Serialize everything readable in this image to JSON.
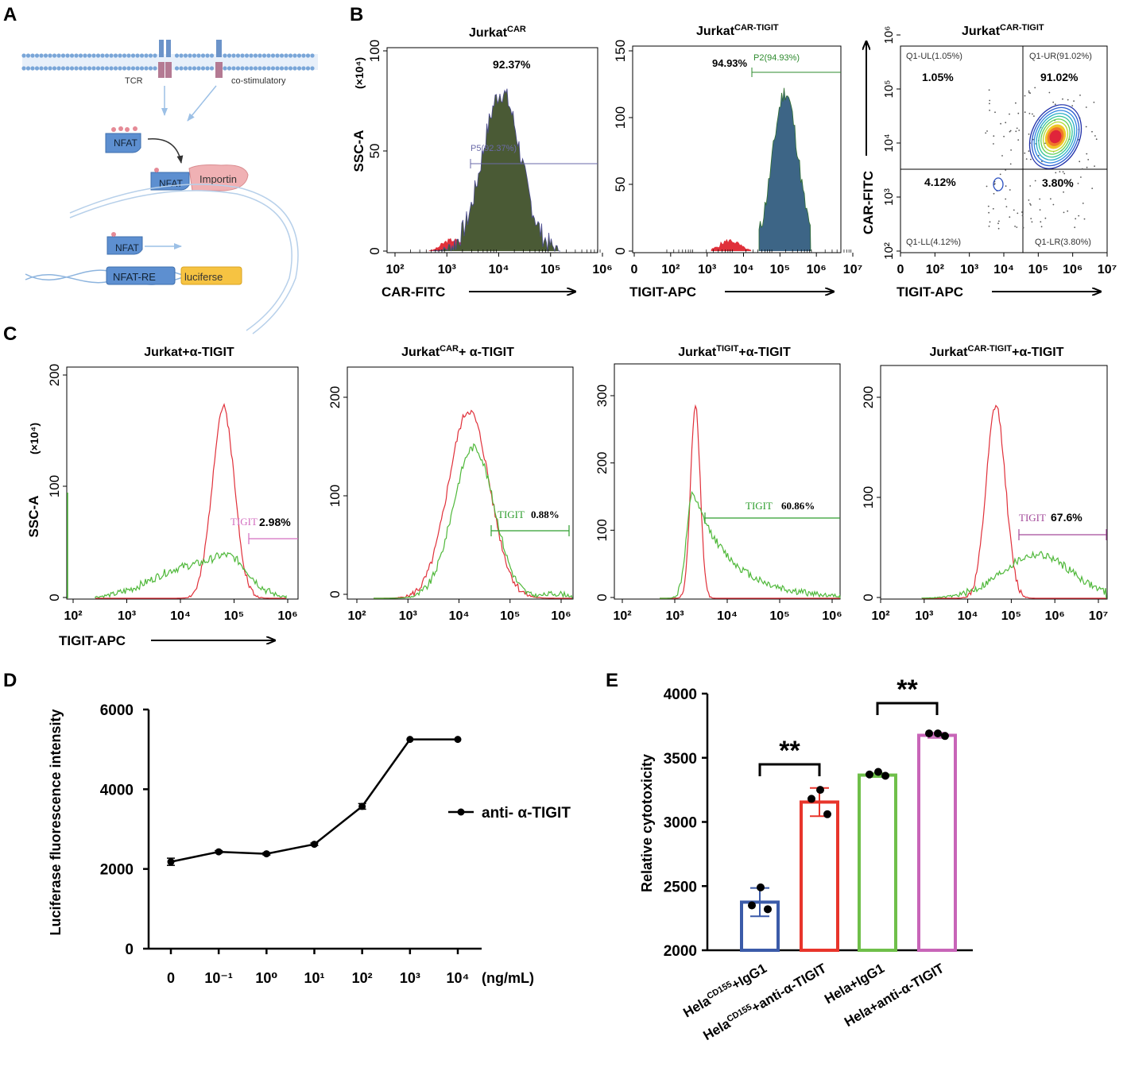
{
  "panel_labels": [
    "A",
    "B",
    "C",
    "D",
    "E"
  ],
  "panel_a": {
    "tcr": "TCR",
    "costim": "co-stimulatory",
    "nfat": "NFAT",
    "importin": "Importin",
    "nfat_re": "NFAT-RE",
    "luciferase": "luciferse"
  },
  "panel_b": {
    "h1": {
      "title_base": "Jurkat",
      "title_sup": "CAR",
      "pct": "92.37%",
      "gate": "P5(92.37%)",
      "ylabel": "SSC-A",
      "yunit": "(×10⁴)",
      "yticks": [
        "0",
        "50",
        "100"
      ],
      "xlabel": "CAR-FITC",
      "xticks": [
        "10²",
        "10³",
        "10⁴",
        "10⁵",
        "10⁶"
      ]
    },
    "h2": {
      "title_base": "Jurkat",
      "title_sup": "CAR-TIGIT",
      "pct": "94.93%",
      "gate": "P2(94.93%)",
      "yticks": [
        "0",
        "50",
        "100",
        "150"
      ],
      "xlabel": "TIGIT-APC",
      "xticks": [
        "0",
        "10²",
        "10³",
        "10⁴",
        "10⁵",
        "10⁶",
        "10⁷"
      ]
    },
    "h3": {
      "title_base": "Jurkat",
      "title_sup": "CAR-TIGIT",
      "ylabel": "CAR-FITC",
      "xlabel": "TIGIT-APC",
      "yticks": [
        "10²",
        "10³",
        "10⁴",
        "10⁵",
        "10⁶"
      ],
      "xticks": [
        "0",
        "10²",
        "10³",
        "10⁴",
        "10⁵",
        "10⁶",
        "10⁷"
      ],
      "q_ul": "Q1-UL(1.05%)",
      "q_ur": "Q1-UR(91.02%)",
      "q_ll": "Q1-LL(4.12%)",
      "q_lr": "Q1-LR(3.80%)",
      "ul": "1.05%",
      "ur": "91.02%",
      "ll": "4.12%",
      "lr": "3.80%"
    }
  },
  "panel_c": {
    "ylabel": "SSC-A",
    "yunit": "(×10⁴)",
    "xlabel": "TIGIT-APC",
    "gate_name": "TIGIT",
    "h1": {
      "title": "Jurkat+α-TIGIT",
      "pct": "2.98%",
      "yticks": [
        "0",
        "100",
        "200"
      ],
      "xticks": [
        "10²",
        "10³",
        "10⁴",
        "10⁵",
        "10⁶"
      ]
    },
    "h2": {
      "title_base": "Jurkat",
      "title_sup": "CAR",
      "title_rest": "+ α-TIGIT",
      "pct": "0.88%",
      "yticks": [
        "0",
        "100",
        "200"
      ],
      "xticks": [
        "10²",
        "10³",
        "10⁴",
        "10⁵",
        "10⁶"
      ]
    },
    "h3": {
      "title_base": "Jurkat",
      "title_sup": "TIGIT",
      "title_rest": "+α-TIGIT",
      "pct": "60.86%",
      "yticks": [
        "0",
        "100",
        "200",
        "300"
      ],
      "xticks": [
        "10²",
        "10³",
        "10⁴",
        "10⁵",
        "10⁶"
      ]
    },
    "h4": {
      "title_base": "Jurkat",
      "title_sup": "CAR-TIGIT",
      "title_rest": "+α-TIGIT",
      "pct": "67.6%",
      "yticks": [
        "0",
        "100",
        "200"
      ],
      "xticks": [
        "10²",
        "10³",
        "10⁴",
        "10⁵",
        "10⁶",
        "10⁷"
      ]
    }
  },
  "chart_data": [
    {
      "type": "line",
      "title": "",
      "ylabel": "Luciferase fluorescence intensity",
      "xlabel": "(ng/mL)",
      "categories": [
        "0",
        "10⁻¹",
        "10⁰",
        "10¹",
        "10²",
        "10³",
        "10⁴"
      ],
      "series": [
        {
          "name": "anti- α-TIGIT",
          "values": [
            2180,
            2430,
            2380,
            2620,
            3570,
            5250,
            5250
          ],
          "errors": [
            90,
            30,
            30,
            30,
            70,
            0,
            0
          ]
        }
      ],
      "ylim": [
        0,
        6000
      ],
      "yticks": [
        0,
        2000,
        4000,
        6000
      ],
      "legend": "right"
    },
    {
      "type": "bar",
      "title": "",
      "ylabel": "Relative cytotoxicity",
      "categories": [
        "Hela^CD155+IgG1",
        "Hela^CD155+anti-α-TIGIT",
        "Hela+IgG1",
        "Hela+anti-α-TIGIT"
      ],
      "category_labels": [
        {
          "base": "Hela",
          "sup": "CD155",
          "rest": "+IgG1"
        },
        {
          "base": "Hela",
          "sup": "CD155",
          "rest": "+anti-α-TIGIT"
        },
        {
          "base": "Hela",
          "sup": "",
          "rest": "+IgG1"
        },
        {
          "base": "Hela",
          "sup": "",
          "rest": "+anti-α-TIGIT"
        }
      ],
      "values": [
        2375,
        3155,
        3365,
        3675
      ],
      "errors": [
        110,
        110,
        15,
        20
      ],
      "points": [
        [
          2490,
          2350,
          2320
        ],
        [
          3250,
          3180,
          3060
        ],
        [
          3390,
          3370,
          3360
        ],
        [
          3690,
          3690,
          3670
        ]
      ],
      "colors": [
        "#3b5ba9",
        "#e8352b",
        "#6fbf4a",
        "#c865b8"
      ],
      "ylim": [
        2000,
        4000
      ],
      "yticks": [
        2000,
        2500,
        3000,
        3500,
        4000
      ],
      "significance": [
        {
          "from": 0,
          "to": 1,
          "label": "**"
        },
        {
          "from": 2,
          "to": 3,
          "label": "**"
        }
      ]
    }
  ]
}
